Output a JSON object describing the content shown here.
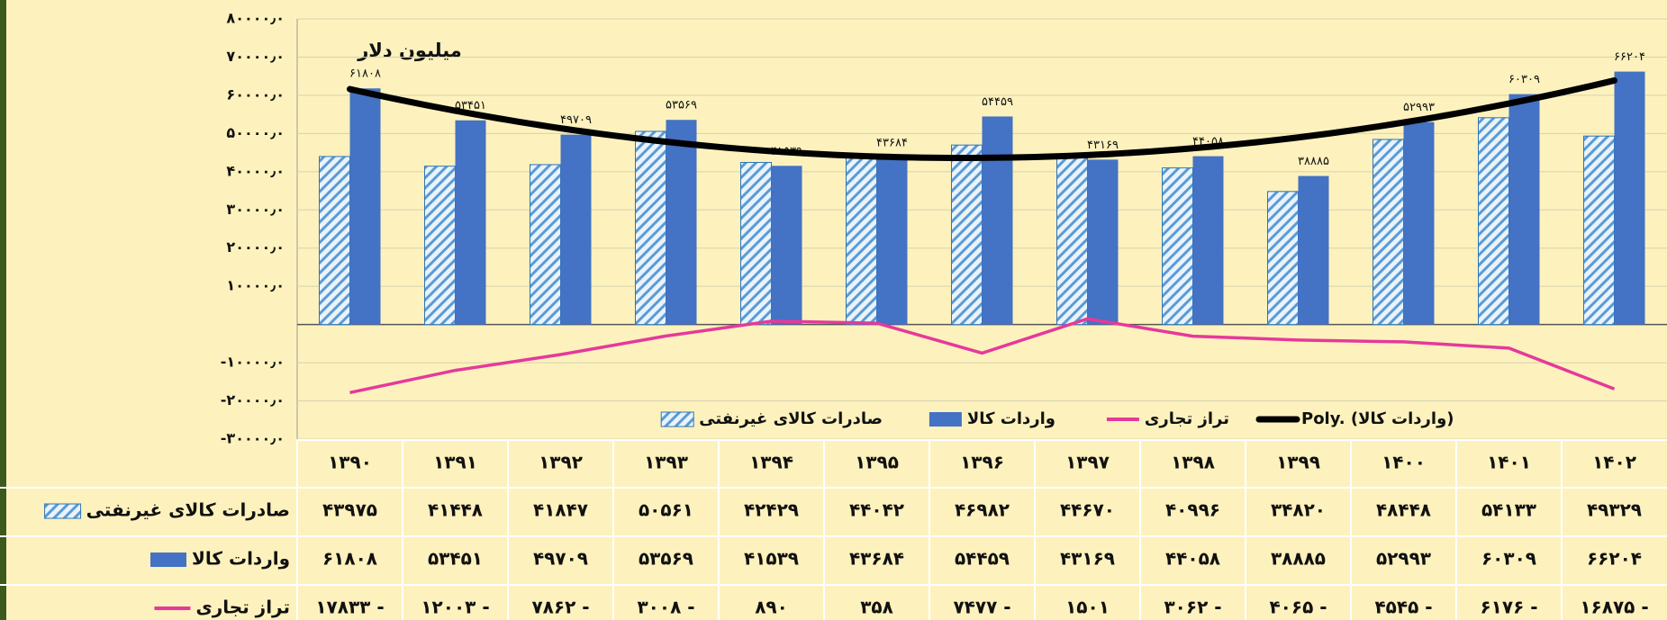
{
  "chart_data": {
    "type": "bar",
    "annotation": "میلیون دلار",
    "categories": [
      "۱۳۹۰",
      "۱۳۹۱",
      "۱۳۹۲",
      "۱۳۹۳",
      "۱۳۹۴",
      "۱۳۹۵",
      "۱۳۹۶",
      "۱۳۹۷",
      "۱۳۹۸",
      "۱۳۹۹",
      "۱۴۰۰",
      "۱۴۰۱",
      "۱۴۰۲"
    ],
    "series": [
      {
        "name": "صادرات کالای غیرنفتی",
        "type": "bar",
        "color": "#5b9bd5",
        "pattern": "hatch",
        "values": [
          43975,
          41448,
          41847,
          50561,
          42429,
          44042,
          46982,
          44670,
          40996,
          34820,
          48448,
          54133,
          49329
        ],
        "value_labels": [
          "۴۳۹۷۵",
          "۴۱۴۴۸",
          "۴۱۸۴۷",
          "۵۰۵۶۱",
          "۴۲۴۲۹",
          "۴۴۰۴۲",
          "۴۶۹۸۲",
          "۴۴۶۷۰",
          "۴۰۹۹۶",
          "۳۴۸۲۰",
          "۴۸۴۴۸",
          "۵۴۱۳۳",
          "۴۹۳۲۹"
        ]
      },
      {
        "name": "واردات کالا",
        "type": "bar",
        "color": "#4472c4",
        "data_labels": true,
        "values": [
          61808,
          53451,
          49709,
          53569,
          41539,
          43684,
          54459,
          43169,
          44058,
          38885,
          52993,
          60309,
          66204
        ],
        "value_labels": [
          "۶۱۸۰۸",
          "۵۳۴۵۱",
          "۴۹۷۰۹",
          "۵۳۵۶۹",
          "۴۱۵۳۹",
          "۴۳۶۸۴",
          "۵۴۴۵۹",
          "۴۳۱۶۹",
          "۴۴۰۵۸",
          "۳۸۸۸۵",
          "۵۲۹۹۳",
          "۶۰۳۰۹",
          "۶۶۲۰۴"
        ]
      },
      {
        "name": "تراز تجاری",
        "type": "line",
        "color": "#e6399b",
        "values": [
          -17833,
          -12003,
          -7862,
          -3008,
          890,
          358,
          -7477,
          1501,
          -3062,
          -4065,
          -4545,
          -6176,
          -16875
        ],
        "value_labels": [
          "۱۷۸۳۳ -",
          "۱۲۰۰۳ -",
          "۷۸۶۲ -",
          "۳۰۰۸ -",
          "۸۹۰",
          "۳۵۸",
          "۷۴۷۷ -",
          "۱۵۰۱",
          "۳۰۶۲ -",
          "۴۰۶۵ -",
          "۴۵۴۵ -",
          "۶۱۷۶ -",
          "۱۶۸۷۵ -"
        ]
      }
    ],
    "trendline": {
      "name": "Poly. (واردات کالا)",
      "series": 1,
      "order": 2,
      "color": "#000000"
    },
    "ylim": [
      -30000,
      80000
    ],
    "yticks": [
      {
        "value": -30000,
        "label": "-۳۰۰۰۰٫۰"
      },
      {
        "value": -20000,
        "label": "-۲۰۰۰۰٫۰"
      },
      {
        "value": -10000,
        "label": "-۱۰۰۰۰٫۰"
      },
      {
        "value": 10000,
        "label": "۱۰۰۰۰٫۰"
      },
      {
        "value": 20000,
        "label": "۲۰۰۰۰٫۰"
      },
      {
        "value": 30000,
        "label": "۳۰۰۰۰٫۰"
      },
      {
        "value": 40000,
        "label": "۴۰۰۰۰٫۰"
      },
      {
        "value": 50000,
        "label": "۵۰۰۰۰٫۰"
      },
      {
        "value": 60000,
        "label": "۶۰۰۰۰٫۰"
      },
      {
        "value": 70000,
        "label": "۷۰۰۰۰٫۰"
      },
      {
        "value": 80000,
        "label": "۸۰۰۰۰٫۰"
      }
    ],
    "grid": true,
    "legend": "bottom",
    "data_table": true
  }
}
